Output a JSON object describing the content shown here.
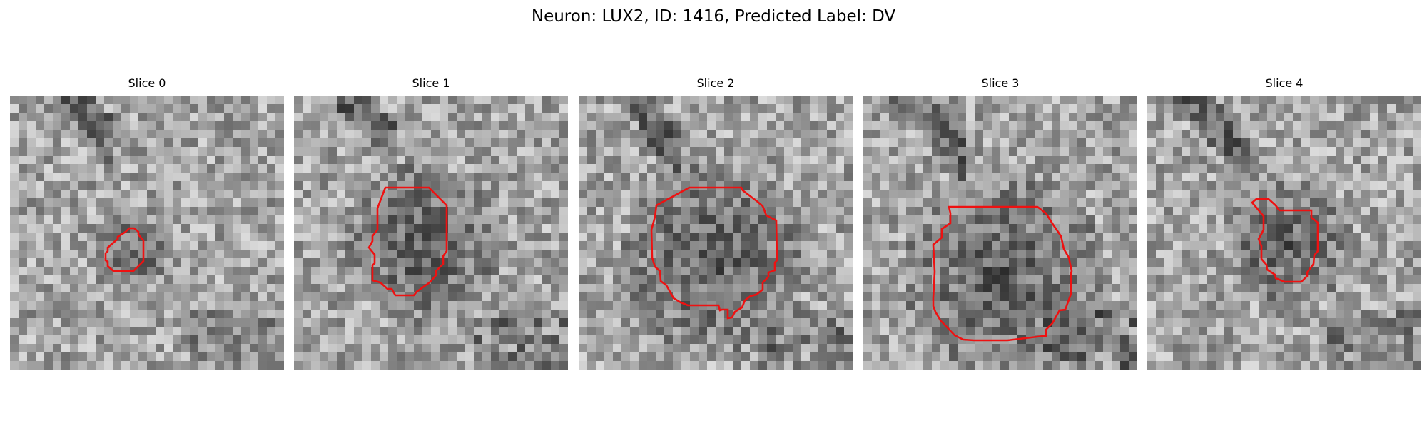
{
  "figure": {
    "title": "Neuron: LUX2, ID: 1416, Predicted Label: DV",
    "contour_color": "#ee1111",
    "colormap": "gray"
  },
  "panels": [
    {
      "title": "Slice 0",
      "image": "grayscale-microscopy-slice",
      "roi": "red-contour"
    },
    {
      "title": "Slice 1",
      "image": "grayscale-microscopy-slice",
      "roi": "red-contour"
    },
    {
      "title": "Slice 2",
      "image": "grayscale-microscopy-slice",
      "roi": "red-contour"
    },
    {
      "title": "Slice 3",
      "image": "grayscale-microscopy-slice",
      "roi": "red-contour"
    },
    {
      "title": "Slice 4",
      "image": "grayscale-microscopy-slice",
      "roi": "red-contour"
    }
  ]
}
